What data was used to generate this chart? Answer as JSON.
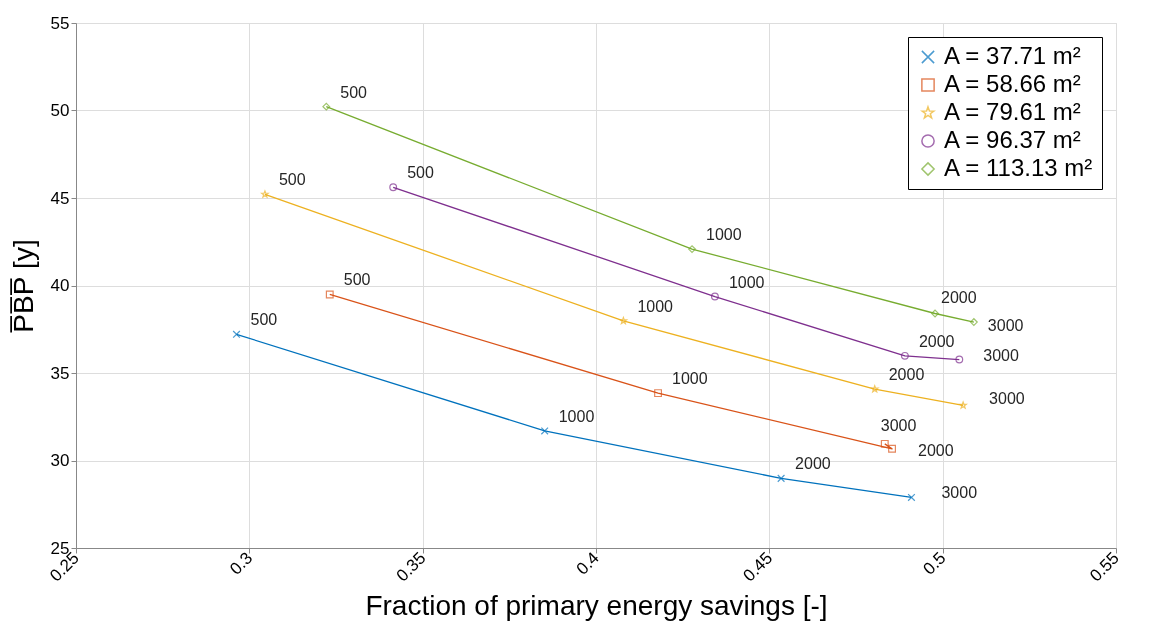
{
  "chart_data": {
    "type": "line",
    "xlabel": "Fraction of primary energy savings [-]",
    "ylabel": "P̅B̅P̅ [y]",
    "xlim": [
      0.25,
      0.55
    ],
    "xticks": [
      0.25,
      0.3,
      0.35,
      0.4,
      0.45,
      0.5,
      0.55
    ],
    "ylim": [
      25,
      55
    ],
    "yticks": [
      25,
      30,
      35,
      40,
      45,
      50,
      55
    ],
    "grid": true,
    "legend": "top right",
    "line_style": "solid",
    "series": [
      {
        "name": "A = 37.71 m²",
        "color": "#0072bd",
        "marker": "cross",
        "x": [
          0.2963,
          0.3852,
          0.4534,
          0.491
        ],
        "values": [
          37.21,
          31.69,
          28.98,
          27.89
        ]
      },
      {
        "name": "A = 58.66 m²",
        "color": "#d95319",
        "marker": "square",
        "x": [
          0.3232,
          0.4179,
          0.4854,
          0.4833
        ],
        "values": [
          39.49,
          33.85,
          30.67,
          30.95
        ]
      },
      {
        "name": "A = 79.61 m²",
        "color": "#edb120",
        "marker": "star",
        "x": [
          0.3045,
          0.4079,
          0.4804,
          0.5059
        ],
        "values": [
          45.21,
          37.98,
          34.08,
          33.15
        ]
      },
      {
        "name": "A = 96.37 m²",
        "color": "#7e2f8e",
        "marker": "circle",
        "x": [
          0.3415,
          0.4343,
          0.4891,
          0.5048
        ],
        "values": [
          45.61,
          39.37,
          35.98,
          35.77
        ]
      },
      {
        "name": "A = 113.13 m²",
        "color": "#77ac30",
        "marker": "diamond",
        "x": [
          0.3222,
          0.4277,
          0.4978,
          0.509
        ],
        "values": [
          50.22,
          42.08,
          38.4,
          37.91
        ]
      }
    ],
    "annotations": [
      {
        "text": "500",
        "x": 0.2963,
        "y": 37.21
      },
      {
        "text": "1000",
        "x": 0.3852,
        "y": 31.69
      },
      {
        "text": "2000",
        "x": 0.4534,
        "y": 28.98
      },
      {
        "text": "3000",
        "x": 0.491,
        "y": 27.89
      },
      {
        "text": "500",
        "x": 0.3232,
        "y": 39.49
      },
      {
        "text": "1000",
        "x": 0.4179,
        "y": 33.85
      },
      {
        "text": "2000",
        "x": 0.4854,
        "y": 30.67
      },
      {
        "text": "3000",
        "x": 0.4833,
        "y": 30.95
      },
      {
        "text": "500",
        "x": 0.3045,
        "y": 45.21
      },
      {
        "text": "1000",
        "x": 0.4079,
        "y": 37.98
      },
      {
        "text": "2000",
        "x": 0.4804,
        "y": 34.08
      },
      {
        "text": "3000",
        "x": 0.5059,
        "y": 33.15
      },
      {
        "text": "500",
        "x": 0.3415,
        "y": 45.61
      },
      {
        "text": "1000",
        "x": 0.4343,
        "y": 39.37
      },
      {
        "text": "2000",
        "x": 0.4891,
        "y": 35.98
      },
      {
        "text": "3000",
        "x": 0.5048,
        "y": 35.77
      },
      {
        "text": "500",
        "x": 0.3222,
        "y": 50.22
      },
      {
        "text": "1000",
        "x": 0.4277,
        "y": 42.08
      },
      {
        "text": "2000",
        "x": 0.4978,
        "y": 38.4
      },
      {
        "text": "3000",
        "x": 0.509,
        "y": 37.91
      }
    ]
  }
}
